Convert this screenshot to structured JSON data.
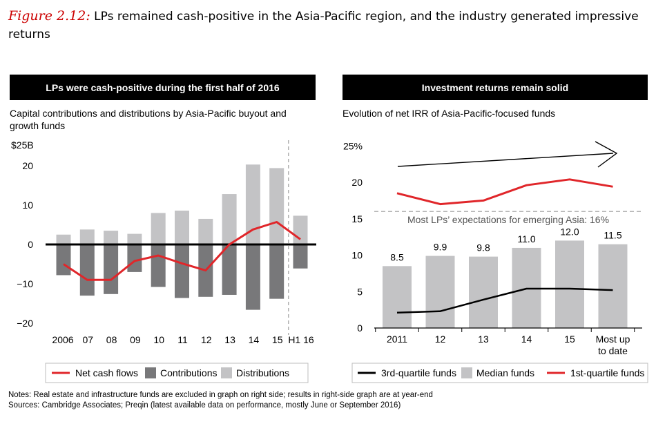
{
  "figure": {
    "label": "Figure 2.12:",
    "title": "LPs remained cash-positive in the Asia-Pacific region, and the industry generated impressive returns"
  },
  "chart_data": [
    {
      "type": "bar",
      "header": "LPs were cash-positive during the first half of 2016",
      "subtitle": "Capital contributions and distributions by Asia-Pacific buyout and growth funds",
      "ylabel": "$25B",
      "ylim": [
        -20,
        25
      ],
      "yticks": [
        {
          "value": 20,
          "label": "20"
        },
        {
          "value": 10,
          "label": "10"
        },
        {
          "value": 0,
          "label": "0"
        },
        {
          "value": -10,
          "label": "−10"
        },
        {
          "value": -20,
          "label": "−20"
        }
      ],
      "categories": [
        "2006",
        "07",
        "08",
        "09",
        "10",
        "11",
        "12",
        "13",
        "14",
        "15",
        "H1 16"
      ],
      "series": [
        {
          "name": "Distributions",
          "kind": "bar",
          "color": "#c3c3c5",
          "values": [
            2.5,
            3.8,
            3.5,
            2.7,
            8.0,
            8.6,
            6.5,
            12.8,
            20.3,
            19.4,
            7.3
          ]
        },
        {
          "name": "Contributions",
          "kind": "bar",
          "color": "#78787a",
          "values": [
            -7.8,
            -13.0,
            -12.6,
            -7.0,
            -10.8,
            -13.6,
            -13.3,
            -12.8,
            -16.6,
            -13.8,
            -6.1
          ]
        },
        {
          "name": "Net cash flows",
          "kind": "line",
          "color": "#e0262a",
          "values": [
            -5.0,
            -9.0,
            -9.0,
            -4.2,
            -2.8,
            -4.8,
            -6.6,
            0.0,
            3.8,
            5.7,
            1.3
          ]
        }
      ],
      "legend": [
        "Net cash flows",
        "Contributions",
        "Distributions"
      ]
    },
    {
      "type": "bar",
      "header": "Investment returns remain solid",
      "subtitle": "Evolution of net IRR of Asia-Pacific-focused funds",
      "ylim": [
        0,
        25
      ],
      "yticks": [
        {
          "value": 25,
          "label": "25%"
        },
        {
          "value": 20,
          "label": "20"
        },
        {
          "value": 15,
          "label": "15"
        },
        {
          "value": 10,
          "label": "10"
        },
        {
          "value": 5,
          "label": "5"
        },
        {
          "value": 0,
          "label": "0"
        }
      ],
      "categories": [
        "2011",
        "12",
        "13",
        "14",
        "15",
        "Most up to date"
      ],
      "series": [
        {
          "name": "Median funds",
          "kind": "bar",
          "color": "#c3c3c5",
          "values": [
            8.5,
            9.9,
            9.8,
            11.0,
            12.0,
            11.5
          ],
          "value_labels": [
            "8.5",
            "9.9",
            "9.8",
            "11.0",
            "12.0",
            "11.5"
          ]
        },
        {
          "name": "3rd-quartile funds",
          "kind": "line",
          "color": "#000000",
          "values": [
            2.1,
            2.3,
            3.9,
            5.4,
            5.4,
            5.2
          ]
        },
        {
          "name": "1st-quartile funds",
          "kind": "line",
          "color": "#e0262a",
          "values": [
            18.5,
            17.0,
            17.5,
            19.6,
            20.4,
            19.4
          ]
        }
      ],
      "reference_line": {
        "value": 16,
        "label": "Most LPs’ expectations for emerging Asia: 16%"
      },
      "legend": [
        "3rd-quartile funds",
        "Median funds",
        "1st-quartile funds"
      ]
    }
  ],
  "notes": {
    "line1": "Notes: Real estate and infrastructure funds are excluded in graph on right side; results in right-side graph are at year-end",
    "line2": "Sources: Cambridge Associates; Preqin (latest available data on performance, mostly June or September 2016)"
  },
  "colors": {
    "accent": "#cc0000",
    "net_line": "#e0262a",
    "contrib": "#78787a",
    "distrib": "#c3c3c5"
  }
}
